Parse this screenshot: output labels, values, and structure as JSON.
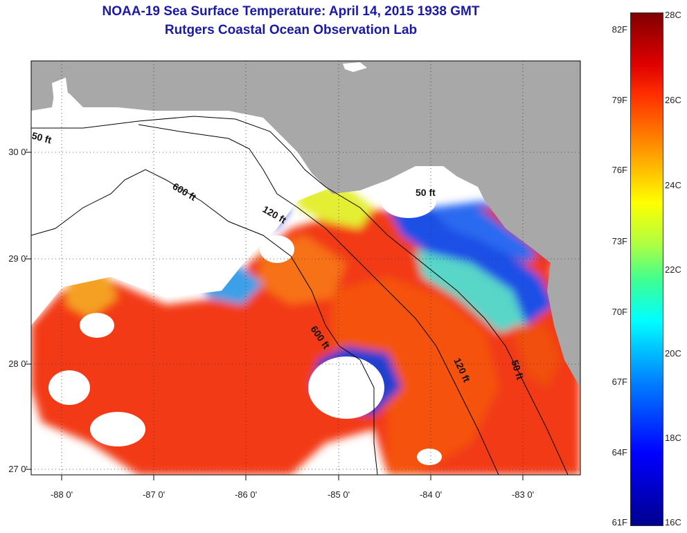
{
  "title": {
    "line1": "NOAA-19 Sea Surface Temperature:  April 14, 2015 1938 GMT",
    "line2": "Rutgers Coastal Ocean Observation Lab"
  },
  "x_ticks": [
    "-88 0'",
    "-87 0'",
    "-86 0'",
    "-85 0'",
    "-84 0'",
    "-83 0'"
  ],
  "y_ticks": [
    "30 0'",
    "29 0'",
    "28 0'",
    "27 0'"
  ],
  "contours": {
    "labels": [
      "50 ft",
      "600 ft",
      "120 ft",
      "50 ft",
      "600 ft",
      "120 ft",
      "50 ft"
    ]
  },
  "colorbar": {
    "fahrenheit": [
      "82F",
      "79F",
      "76F",
      "73F",
      "70F",
      "67F",
      "64F",
      "61F"
    ],
    "celsius": [
      "28C",
      "26C",
      "24C",
      "22C",
      "20C",
      "18C",
      "16C"
    ]
  },
  "colors": {
    "land": "#a8a8a8",
    "no_data": "#ffffff",
    "title": "#1a1aa6"
  }
}
